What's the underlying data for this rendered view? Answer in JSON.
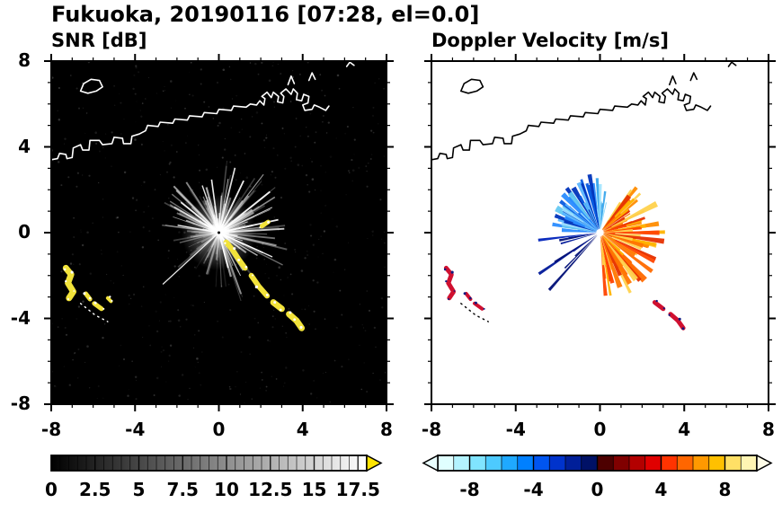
{
  "title": "Fukuoka, 20190116 [07:28, el=0.0]",
  "panels": [
    {
      "title": "SNR [dB]"
    },
    {
      "title": "Doppler Velocity [m/s]"
    }
  ],
  "axes": {
    "xlim": [
      -8,
      8
    ],
    "ylim": [
      -8,
      8
    ],
    "minor_tick_step": 1,
    "xticks": [
      {
        "value": -8,
        "label": "-8"
      },
      {
        "value": -4,
        "label": "-4"
      },
      {
        "value": 0,
        "label": "0"
      },
      {
        "value": 4,
        "label": "4"
      },
      {
        "value": 8,
        "label": "8"
      }
    ],
    "yticks": [
      {
        "value": 8,
        "label": "8"
      },
      {
        "value": 4,
        "label": "4"
      },
      {
        "value": 0,
        "label": "0"
      },
      {
        "value": -4,
        "label": "-4"
      },
      {
        "value": -8,
        "label": "-8"
      }
    ]
  },
  "colorbars": [
    {
      "id": "snr",
      "range": [
        0,
        18
      ],
      "minor_step": 0.5,
      "gradient": [
        "#000000",
        "#ffffff"
      ],
      "over_arrow_color": "#ffe400",
      "ticks": [
        {
          "value": 0,
          "label": "0"
        },
        {
          "value": 2.5,
          "label": "2.5"
        },
        {
          "value": 5,
          "label": "5"
        },
        {
          "value": 7.5,
          "label": "7.5"
        },
        {
          "value": 10,
          "label": "10"
        },
        {
          "value": 12.5,
          "label": "12.5"
        },
        {
          "value": 15,
          "label": "15"
        },
        {
          "value": 17.5,
          "label": "17.5"
        }
      ]
    },
    {
      "id": "doppler",
      "range": [
        -10,
        10
      ],
      "minor_step": 1,
      "segment_colors": [
        "#e0ffff",
        "#b3f3ff",
        "#80e4ff",
        "#4dcaff",
        "#1fa9ff",
        "#0080ff",
        "#0055f0",
        "#0033cc",
        "#001f99",
        "#001166",
        "#4d0000",
        "#800000",
        "#b30000",
        "#e00000",
        "#ff3300",
        "#ff6600",
        "#ff9900",
        "#ffc000",
        "#ffe066",
        "#fff5b3"
      ],
      "under_arrow_color": "#eaffff",
      "over_arrow_color": "#fffde8",
      "ticks": [
        {
          "value": -8,
          "label": "-8"
        },
        {
          "value": -4,
          "label": "-4"
        },
        {
          "value": 0,
          "label": "0"
        },
        {
          "value": 4,
          "label": "4"
        },
        {
          "value": 8,
          "label": "8"
        }
      ]
    }
  ],
  "coastline": {
    "segments": [
      [
        [
          -8,
          3.4
        ],
        [
          -7.7,
          3.45
        ],
        [
          -7.6,
          3.7
        ],
        [
          -7.3,
          3.65
        ],
        [
          -7.25,
          3.45
        ],
        [
          -7.0,
          3.5
        ],
        [
          -6.95,
          3.95
        ],
        [
          -6.6,
          4.1
        ],
        [
          -6.5,
          3.85
        ],
        [
          -6.2,
          3.85
        ],
        [
          -6.15,
          4.3
        ],
        [
          -5.7,
          4.3
        ],
        [
          -5.55,
          4.1
        ],
        [
          -5.1,
          4.15
        ],
        [
          -5.0,
          4.45
        ],
        [
          -4.6,
          4.4
        ],
        [
          -4.55,
          4.15
        ],
        [
          -4.2,
          4.15
        ],
        [
          -4.15,
          4.5
        ],
        [
          -3.8,
          4.6
        ],
        [
          -3.5,
          4.75
        ],
        [
          -3.4,
          5.0
        ],
        [
          -2.9,
          4.95
        ],
        [
          -2.8,
          5.15
        ],
        [
          -2.2,
          5.1
        ],
        [
          -2.1,
          5.3
        ],
        [
          -1.5,
          5.25
        ],
        [
          -1.4,
          5.45
        ],
        [
          -0.8,
          5.4
        ],
        [
          -0.7,
          5.6
        ],
        [
          -0.1,
          5.55
        ],
        [
          0.0,
          5.75
        ],
        [
          0.6,
          5.7
        ],
        [
          0.7,
          5.9
        ],
        [
          1.3,
          5.85
        ],
        [
          1.5,
          6.0
        ],
        [
          1.8,
          5.95
        ],
        [
          1.95,
          6.15
        ],
        [
          2.15,
          5.95
        ],
        [
          2.2,
          6.25
        ],
        [
          2.05,
          6.35
        ],
        [
          2.3,
          6.55
        ],
        [
          2.5,
          6.3
        ],
        [
          2.6,
          6.55
        ],
        [
          2.85,
          6.35
        ],
        [
          2.8,
          6.1
        ],
        [
          3.05,
          6.05
        ],
        [
          3.1,
          6.35
        ],
        [
          2.95,
          6.5
        ],
        [
          3.2,
          6.7
        ],
        [
          3.45,
          6.45
        ],
        [
          3.55,
          6.7
        ],
        [
          3.75,
          6.5
        ],
        [
          3.7,
          6.2
        ],
        [
          3.95,
          6.15
        ],
        [
          4.05,
          6.45
        ],
        [
          4.3,
          6.35
        ],
        [
          4.25,
          6.05
        ],
        [
          4.0,
          5.95
        ],
        [
          4.1,
          5.7
        ],
        [
          4.45,
          5.75
        ],
        [
          4.55,
          5.95
        ],
        [
          4.8,
          5.85
        ],
        [
          5.1,
          5.7
        ],
        [
          5.25,
          5.9
        ]
      ],
      [
        [
          -6.6,
          6.6
        ],
        [
          -6.45,
          6.95
        ],
        [
          -6.1,
          7.15
        ],
        [
          -5.7,
          7.1
        ],
        [
          -5.55,
          6.8
        ],
        [
          -5.85,
          6.6
        ],
        [
          -6.25,
          6.5
        ],
        [
          -6.6,
          6.6
        ]
      ],
      [
        [
          3.3,
          6.9
        ],
        [
          3.45,
          7.3
        ],
        [
          3.6,
          6.95
        ]
      ],
      [
        [
          4.3,
          7.1
        ],
        [
          4.45,
          7.45
        ],
        [
          4.6,
          7.15
        ]
      ],
      [
        [
          6.1,
          7.75
        ],
        [
          6.25,
          7.95
        ],
        [
          6.45,
          7.8
        ]
      ]
    ],
    "dotted": [
      [
        [
          -6.6,
          -3.3
        ],
        [
          -5.9,
          -3.85
        ],
        [
          -5.3,
          -4.15
        ]
      ]
    ]
  },
  "chart_data": [
    {
      "type": "heatmap",
      "title": "SNR [dB]",
      "units": "dB",
      "xlim": [
        -8,
        8
      ],
      "ylim": [
        -8,
        8
      ],
      "x_ticks": [
        -8,
        -4,
        0,
        4,
        8
      ],
      "y_ticks": [
        -8,
        -4,
        0,
        4,
        8
      ],
      "colorbar_ticks": [
        0,
        2.5,
        5,
        7.5,
        10,
        12.5,
        15,
        17.5
      ],
      "colormap": "grayscale 0-18 dB, over-range yellow",
      "description": "Radar PPI of signal-to-noise ratio: grayscale radial echo streaks radiating from the radar at (0,0) on a black background; yellow over-range ground-clutter patches in the southwest and along a line running southeast from the radar; coastline drawn in white across the northern half",
      "render": {
        "bg": "#000000",
        "coast_color": "#ffffff",
        "glow": true,
        "speckle": {
          "seed": 5,
          "count": 520
        },
        "rays": {
          "seed": 11,
          "count": 240,
          "blocked": [
            [
              228,
              235
            ],
            [
              256,
              263
            ],
            [
              199,
              204
            ]
          ],
          "sector_weights": [
            {
              "from": 280,
              "to": 110,
              "w": 1.0
            },
            {
              "from": 110,
              "to": 180,
              "w": 0.75
            },
            {
              "from": 180,
              "to": 280,
              "w": 0.4
            }
          ],
          "bright": [
            {
              "a": 222,
              "len": 3.6,
              "w": 1.2
            },
            {
              "a": 38,
              "len": 3.1,
              "w": 2.0
            },
            {
              "a": 12,
              "len": 2.9,
              "w": 1.8
            },
            {
              "a": 64,
              "len": 2.7,
              "w": 1.8
            },
            {
              "a": 98,
              "len": 2.5,
              "w": 1.6
            },
            {
              "a": 142,
              "len": 2.3,
              "w": 1.6
            },
            {
              "a": -24,
              "len": 2.3,
              "w": 1.6
            },
            {
              "a": -52,
              "len": 1.9,
              "w": 1.4
            },
            {
              "a": -75,
              "len": 1.7,
              "w": 1.4
            },
            {
              "a": 170,
              "len": 2.0,
              "w": 1.4
            }
          ]
        },
        "clutter_color": "#f2e33a",
        "clutter_dot": "#ffffff",
        "clutter": [
          {
            "pts": [
              [
                -7.3,
                -1.65
              ],
              [
                -7.05,
                -1.95
              ],
              [
                -7.2,
                -2.35
              ],
              [
                -6.95,
                -2.75
              ],
              [
                -7.15,
                -3.05
              ]
            ],
            "w": 7
          },
          {
            "pts": [
              [
                -6.35,
                -2.85
              ],
              [
                -6.15,
                -3.1
              ]
            ],
            "w": 5
          },
          {
            "pts": [
              [
                -5.95,
                -3.3
              ],
              [
                -5.6,
                -3.55
              ]
            ],
            "w": 5
          },
          {
            "pts": [
              [
                -5.3,
                -3.05
              ],
              [
                -5.15,
                -3.2
              ]
            ],
            "w": 4
          },
          {
            "pts": [
              [
                0.35,
                -0.45
              ],
              [
                0.65,
                -0.8
              ],
              [
                0.95,
                -1.25
              ],
              [
                1.25,
                -1.65
              ]
            ],
            "w": 6
          },
          {
            "pts": [
              [
                1.55,
                -2.0
              ],
              [
                1.9,
                -2.5
              ],
              [
                2.3,
                -2.95
              ]
            ],
            "w": 6
          },
          {
            "pts": [
              [
                2.6,
                -3.25
              ],
              [
                3.0,
                -3.55
              ]
            ],
            "w": 7
          },
          {
            "pts": [
              [
                3.35,
                -3.8
              ],
              [
                3.7,
                -4.1
              ],
              [
                3.95,
                -4.45
              ]
            ],
            "w": 7
          },
          {
            "pts": [
              [
                2.05,
                0.3
              ],
              [
                2.35,
                0.5
              ]
            ],
            "w": 5
          }
        ],
        "center": {
          "ring": "#ffffff",
          "hole": "#000000"
        }
      }
    },
    {
      "type": "heatmap",
      "title": "Doppler Velocity [m/s]",
      "units": "m/s",
      "xlim": [
        -8,
        8
      ],
      "ylim": [
        -8,
        8
      ],
      "x_ticks": [
        -8,
        -4,
        0,
        4,
        8
      ],
      "y_ticks": [
        -8,
        -4,
        0,
        4,
        8
      ],
      "colorbar_ticks": [
        -8,
        -4,
        0,
        4,
        8
      ],
      "colormap": "diverging cyan-blue (negative) to red-orange-yellow (positive), -10 to 10 m/s",
      "description": "Radar PPI of Doppler velocity on white background: fan of negative velocities (light to dark blue) toward the north-northwest, fan of positive velocities (red, orange, yellow) toward the east and southeast, long dark-navy spikes to the west-southwest; red/navy ground-clutter patches southwest and southeast; coastline drawn in black",
      "render": {
        "bg": "#ffffff",
        "coast_color": "#000000",
        "fans": [
          {
            "name": "negative-blue-fan",
            "seed": 21,
            "count": 85,
            "a0": 95,
            "a1": 178,
            "lmin": 0.5,
            "lmax": 2.8,
            "wmin": 2,
            "wmax": 6,
            "colors": [
              "#9adcff",
              "#5ab4ff",
              "#2a8cff",
              "#0a5ce0",
              "#0033bb",
              "#66c9f2"
            ]
          },
          {
            "name": "cyan-north-spikes",
            "seed": 31,
            "count": 14,
            "a0": 78,
            "a1": 95,
            "lmin": 0.8,
            "lmax": 2.6,
            "wmin": 1.5,
            "wmax": 4,
            "colors": [
              "#a5e6ff",
              "#6fcdf7",
              "#3aa7ec"
            ]
          },
          {
            "name": "positive-orange-fan",
            "seed": 41,
            "count": 115,
            "a0": -85,
            "a1": 58,
            "lmin": 0.5,
            "lmax": 3.2,
            "wmin": 2,
            "wmax": 6,
            "colors": [
              "#ff8c00",
              "#ff6a00",
              "#ff4400",
              "#e63000",
              "#ffb300",
              "#ffd24d",
              "#ff7700"
            ]
          },
          {
            "name": "navy-west-spikes",
            "seed": 51,
            "count": 10,
            "a0": 182,
            "a1": 232,
            "lmin": 1.4,
            "lmax": 3.7,
            "wmin": 1.5,
            "wmax": 3.5,
            "colors": [
              "#001899",
              "#0022bb",
              "#000f77"
            ]
          }
        ],
        "clutter_color": "#d01030",
        "clutter_dot": "#101a80",
        "clutter": [
          {
            "pts": [
              [
                -7.3,
                -1.65
              ],
              [
                -7.05,
                -1.95
              ],
              [
                -7.2,
                -2.35
              ],
              [
                -6.95,
                -2.75
              ],
              [
                -7.15,
                -3.05
              ]
            ],
            "w": 5
          },
          {
            "pts": [
              [
                -6.35,
                -2.85
              ],
              [
                -6.15,
                -3.1
              ]
            ],
            "w": 4
          },
          {
            "pts": [
              [
                -5.95,
                -3.3
              ],
              [
                -5.6,
                -3.55
              ]
            ],
            "w": 4
          },
          {
            "pts": [
              [
                2.6,
                -3.25
              ],
              [
                3.0,
                -3.55
              ]
            ],
            "w": 5
          },
          {
            "pts": [
              [
                3.35,
                -3.8
              ],
              [
                3.7,
                -4.1
              ],
              [
                3.95,
                -4.45
              ]
            ],
            "w": 5
          }
        ],
        "center": {
          "ring": "#ffffff",
          "hole": "#ffffff"
        }
      }
    }
  ]
}
